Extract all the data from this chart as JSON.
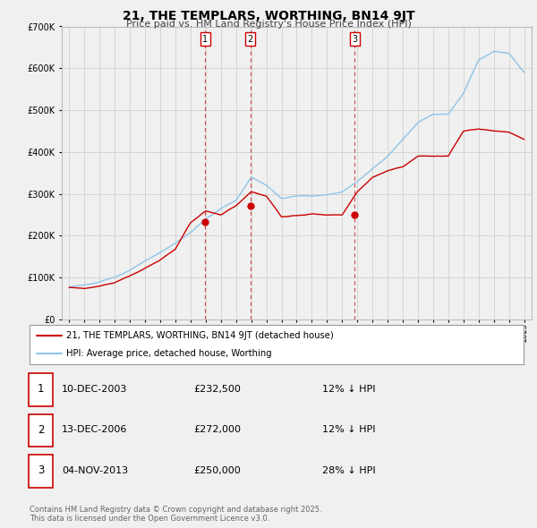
{
  "title": "21, THE TEMPLARS, WORTHING, BN14 9JT",
  "subtitle": "Price paid vs. HM Land Registry's House Price Index (HPI)",
  "legend_line1": "21, THE TEMPLARS, WORTHING, BN14 9JT (detached house)",
  "legend_line2": "HPI: Average price, detached house, Worthing",
  "footnote1": "Contains HM Land Registry data © Crown copyright and database right 2025.",
  "footnote2": "This data is licensed under the Open Government Licence v3.0.",
  "transactions": [
    {
      "num": 1,
      "date": "10-DEC-2003",
      "price": "£232,500",
      "hpi": "12% ↓ HPI",
      "year": 2003.95
    },
    {
      "num": 2,
      "date": "13-DEC-2006",
      "price": "£272,000",
      "hpi": "12% ↓ HPI",
      "year": 2006.95
    },
    {
      "num": 3,
      "date": "04-NOV-2013",
      "price": "£250,000",
      "hpi": "28% ↓ HPI",
      "year": 2013.83
    }
  ],
  "sale_prices": [
    232500,
    272000,
    250000
  ],
  "hpi_color": "#8ec4e8",
  "price_color": "#cc0000",
  "background_color": "#f0f0f0",
  "plot_bg_color": "#f0f0f0",
  "grid_color": "#cccccc",
  "ylim": [
    0,
    700000
  ],
  "yticks": [
    0,
    100000,
    200000,
    300000,
    400000,
    500000,
    600000,
    700000
  ],
  "xlim_start": 1994.5,
  "xlim_end": 2025.5,
  "xticks": [
    1995,
    1996,
    1997,
    1998,
    1999,
    2000,
    2001,
    2002,
    2003,
    2004,
    2005,
    2006,
    2007,
    2008,
    2009,
    2010,
    2011,
    2012,
    2013,
    2014,
    2015,
    2016,
    2017,
    2018,
    2019,
    2020,
    2021,
    2022,
    2023,
    2024,
    2025
  ],
  "hpi_base": [
    78000,
    82000,
    90000,
    100000,
    118000,
    140000,
    160000,
    182000,
    208000,
    240000,
    265000,
    285000,
    340000,
    320000,
    290000,
    295000,
    295000,
    298000,
    305000,
    330000,
    360000,
    390000,
    430000,
    470000,
    490000,
    490000,
    540000,
    620000,
    640000,
    635000,
    590000
  ],
  "price_base": [
    76000,
    74000,
    80000,
    88000,
    104000,
    122000,
    142000,
    168000,
    232500,
    260000,
    250000,
    272000,
    305000,
    295000,
    245000,
    248000,
    252000,
    250000,
    250000,
    305000,
    340000,
    355000,
    365000,
    390000,
    390000,
    390000,
    450000,
    455000,
    450000,
    448000,
    430000
  ]
}
